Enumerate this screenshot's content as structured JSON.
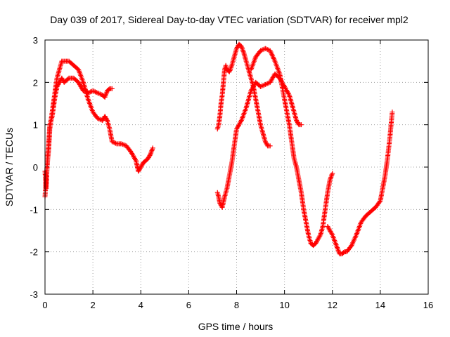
{
  "chart_data": {
    "type": "scatter",
    "title": "Day 039 of 2017, Sidereal Day-to-day VTEC variation (SDTVAR) for receiver mpl2",
    "xlabel": "GPS time / hours",
    "ylabel": "SDTVAR / TECUs",
    "xlim": [
      0,
      16
    ],
    "ylim": [
      -3,
      3
    ],
    "xticks": [
      "0",
      "2",
      "4",
      "6",
      "8",
      "10",
      "12",
      "14",
      "16"
    ],
    "yticks": [
      "-3",
      "-2",
      "-1",
      "0",
      "1",
      "2",
      "3"
    ],
    "grid": true,
    "marker": "+",
    "colors": {
      "points": "#ff0000"
    },
    "series": [
      {
        "x": [
          0.0,
          0.05,
          0.1,
          0.15,
          0.2,
          0.3,
          0.4,
          0.5,
          0.6,
          0.7,
          0.8,
          1.0,
          1.2,
          1.4,
          1.5,
          1.6,
          1.7,
          1.8,
          2.0,
          2.2,
          2.4,
          2.5,
          2.6,
          2.7,
          2.8
        ],
        "y": [
          -0.1,
          -0.5,
          0.2,
          0.5,
          1.0,
          1.2,
          1.6,
          1.9,
          2.0,
          2.1,
          2.0,
          2.1,
          2.1,
          2.0,
          1.9,
          1.8,
          1.8,
          1.75,
          1.8,
          1.75,
          1.7,
          1.65,
          1.8,
          1.85,
          1.85
        ]
      },
      {
        "x": [
          0.0,
          0.05,
          0.1,
          0.15,
          0.2,
          0.3,
          0.4,
          0.5,
          0.6,
          0.7,
          0.8,
          1.0,
          1.2,
          1.4,
          1.6,
          1.8,
          2.0,
          2.2,
          2.4,
          2.5,
          2.6,
          2.7,
          2.8,
          3.0,
          3.2,
          3.4,
          3.6,
          3.8,
          3.9,
          4.0,
          4.1,
          4.2,
          4.3,
          4.4,
          4.5
        ],
        "y": [
          -0.7,
          -0.3,
          0.1,
          0.4,
          0.9,
          1.3,
          1.7,
          2.1,
          2.3,
          2.5,
          2.5,
          2.5,
          2.4,
          2.3,
          2.0,
          1.6,
          1.3,
          1.15,
          1.1,
          1.2,
          1.1,
          0.9,
          0.6,
          0.55,
          0.55,
          0.5,
          0.35,
          0.15,
          -0.1,
          0.0,
          0.1,
          0.15,
          0.2,
          0.3,
          0.45
        ]
      },
      {
        "x": [
          7.2,
          7.25,
          7.3,
          7.35,
          7.4,
          7.45,
          7.5,
          7.55,
          7.6,
          7.7,
          7.8,
          7.9,
          8.0,
          8.1,
          8.2,
          8.3,
          8.4,
          8.5,
          8.6,
          8.7,
          8.8,
          8.9,
          9.0,
          9.1,
          9.2,
          9.3,
          9.4
        ],
        "y": [
          0.9,
          1.0,
          1.2,
          1.5,
          1.7,
          2.0,
          2.3,
          2.4,
          2.3,
          2.25,
          2.4,
          2.6,
          2.8,
          2.9,
          2.85,
          2.7,
          2.5,
          2.3,
          2.1,
          1.9,
          1.6,
          1.3,
          1.0,
          0.8,
          0.6,
          0.5,
          0.5
        ]
      },
      {
        "x": [
          7.2,
          7.25,
          7.3,
          7.35,
          7.4,
          7.5,
          7.6,
          7.7,
          7.8,
          7.9,
          8.0,
          8.2,
          8.4,
          8.6,
          8.8,
          9.0,
          9.2,
          9.4,
          9.6,
          9.8,
          10.0,
          10.2,
          10.4,
          10.5,
          10.6,
          10.7
        ],
        "y": [
          -0.6,
          -0.7,
          -0.85,
          -0.9,
          -0.95,
          -0.7,
          -0.5,
          -0.2,
          0.1,
          0.5,
          0.9,
          1.1,
          1.4,
          1.8,
          2.0,
          1.9,
          1.95,
          2.0,
          2.2,
          2.1,
          1.9,
          1.7,
          1.3,
          1.1,
          1.0,
          1.0
        ]
      },
      {
        "x": [
          8.6,
          8.8,
          9.0,
          9.2,
          9.4,
          9.6,
          9.8,
          10.0,
          10.1,
          10.2,
          10.3,
          10.4,
          10.5,
          10.6,
          10.7,
          10.8,
          10.9,
          11.0,
          11.1,
          11.2,
          11.3,
          11.4,
          11.5,
          11.6,
          11.7,
          11.8,
          11.9,
          12.0
        ],
        "y": [
          2.3,
          2.6,
          2.75,
          2.8,
          2.75,
          2.5,
          2.2,
          1.6,
          1.3,
          1.0,
          0.6,
          0.2,
          0.0,
          -0.3,
          -0.6,
          -1.0,
          -1.3,
          -1.6,
          -1.8,
          -1.85,
          -1.8,
          -1.7,
          -1.6,
          -1.4,
          -1.0,
          -0.6,
          -0.3,
          -0.15
        ]
      },
      {
        "x": [
          11.8,
          12.0,
          12.2,
          12.3,
          12.4,
          12.5,
          12.6,
          12.8,
          13.0,
          13.2,
          13.4,
          13.6,
          13.8,
          14.0,
          14.1,
          14.2,
          14.3,
          14.4,
          14.5
        ],
        "y": [
          -1.4,
          -1.6,
          -1.9,
          -2.05,
          -2.05,
          -2.0,
          -2.0,
          -1.85,
          -1.6,
          -1.3,
          -1.15,
          -1.05,
          -0.95,
          -0.8,
          -0.5,
          -0.2,
          0.2,
          0.7,
          1.3
        ]
      }
    ]
  }
}
